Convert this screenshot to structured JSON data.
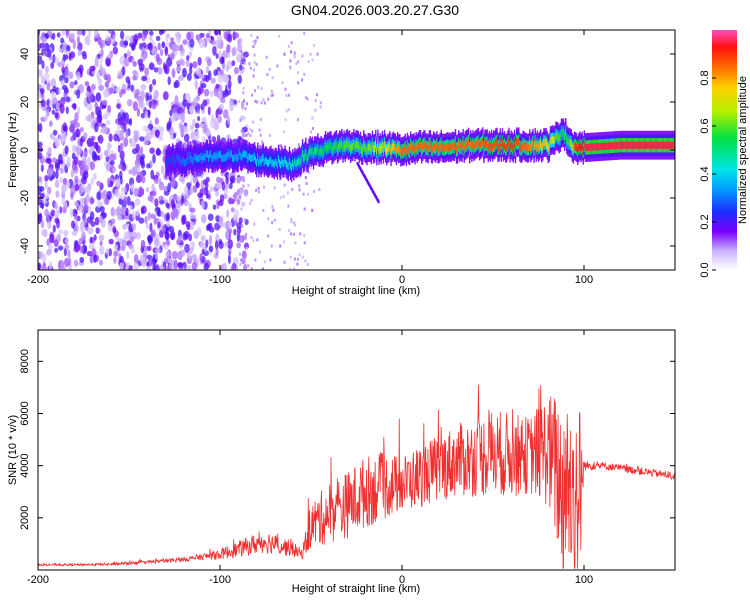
{
  "title": "GN04.2026.003.20.27.G30",
  "chart_data": [
    {
      "type": "heatmap",
      "title": "GN04.2026.003.20.27.G30",
      "xlabel": "Height of straight line (km)",
      "ylabel": "Frequency (Hz)",
      "xlim": [
        -200,
        150
      ],
      "ylim": [
        -50,
        50
      ],
      "xticks": [
        -200,
        -100,
        0,
        100
      ],
      "yticks": [
        -40,
        -20,
        0,
        20,
        40
      ],
      "colorbar": {
        "label": "Normalized spectral amplitude",
        "range": [
          0,
          1
        ],
        "ticks": [
          "0.0",
          "0.2",
          "0.4",
          "0.6",
          "0.8"
        ]
      },
      "ridge": {
        "x": [
          -130,
          -120,
          -110,
          -100,
          -90,
          -80,
          -70,
          -60,
          -55,
          -50,
          -40,
          -30,
          -20,
          -10,
          0,
          10,
          20,
          40,
          60,
          80,
          85,
          88,
          92,
          95,
          100,
          120,
          150
        ],
        "freq": [
          -5,
          -4,
          -3,
          -3,
          -2,
          -4,
          -5,
          -6,
          -3,
          -1,
          1,
          2,
          1,
          1,
          0,
          1,
          1,
          2,
          2,
          2,
          5,
          8,
          3,
          1,
          1,
          2,
          2
        ],
        "amplitude": [
          0.25,
          0.3,
          0.35,
          0.35,
          0.35,
          0.4,
          0.4,
          0.45,
          0.5,
          0.5,
          0.55,
          0.6,
          0.6,
          0.7,
          0.85,
          0.85,
          0.85,
          0.85,
          0.9,
          0.75,
          0.6,
          0.55,
          0.6,
          0.9,
          0.95,
          0.95,
          0.95
        ]
      }
    },
    {
      "type": "line",
      "xlabel": "Height of straight line (km)",
      "ylabel": "SNR (10 * v/v)",
      "xlim": [
        -200,
        150
      ],
      "ylim": [
        0,
        9200
      ],
      "xticks": [
        -200,
        -100,
        0,
        100
      ],
      "yticks": [
        2000,
        4000,
        6000,
        8000
      ],
      "series": [
        {
          "name": "SNR",
          "color": "#ef3030",
          "x": [
            -200,
            -180,
            -160,
            -140,
            -120,
            -110,
            -100,
            -90,
            -85,
            -80,
            -75,
            -70,
            -65,
            -60,
            -55,
            -50,
            -40,
            -30,
            -20,
            -10,
            0,
            10,
            20,
            30,
            40,
            50,
            60,
            70,
            80,
            85,
            88,
            92,
            95,
            98,
            100,
            110,
            120,
            130,
            140,
            150
          ],
          "mean": [
            200,
            200,
            220,
            300,
            400,
            500,
            600,
            800,
            900,
            1000,
            1100,
            1000,
            900,
            800,
            600,
            1700,
            2200,
            2500,
            3000,
            3200,
            3300,
            3600,
            3900,
            4200,
            4300,
            4500,
            4400,
            4400,
            4600,
            3800,
            3000,
            3200,
            2800,
            3000,
            4000,
            4000,
            3900,
            3800,
            3700,
            3600
          ],
          "spread": [
            40,
            40,
            50,
            60,
            80,
            120,
            200,
            300,
            350,
            400,
            450,
            400,
            350,
            300,
            200,
            900,
            1200,
            1300,
            1400,
            1300,
            1100,
            1200,
            1300,
            1400,
            1500,
            1700,
            1600,
            1500,
            2200,
            3000,
            3500,
            3500,
            3500,
            3500,
            200,
            150,
            150,
            150,
            150,
            150
          ]
        }
      ]
    }
  ]
}
